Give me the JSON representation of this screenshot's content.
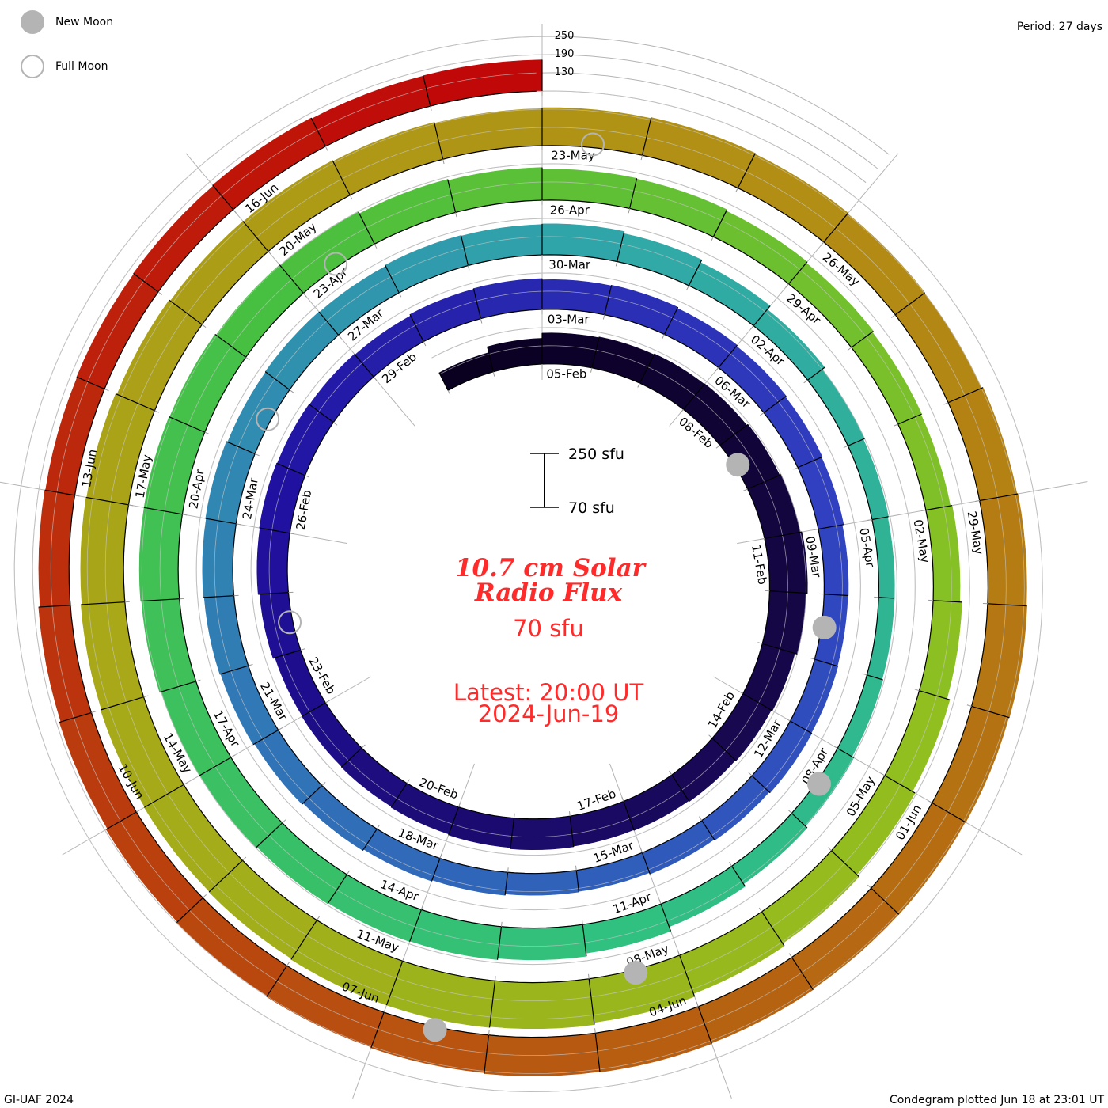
{
  "legend": {
    "new_moon": "New Moon",
    "full_moon": "Full Moon"
  },
  "period_label": "Period: 27 days",
  "footer_left": "GI-UAF 2024",
  "footer_right": "Condegram plotted Jun 18 at 23:01 UT",
  "center": {
    "title_line1": "10.7 cm Solar",
    "title_line2": "Radio Flux",
    "value": "70 sfu",
    "latest_line1": "Latest: 20:00 UT",
    "latest_line2": "2024-Jun-19"
  },
  "scale_bar": {
    "top": "250 sfu",
    "bottom": "70 sfu"
  },
  "chart_data": {
    "type": "condegram",
    "title": "10.7 cm Solar Radio Flux",
    "unit": "sfu",
    "period_days": 27,
    "start_date": "2024-02-03",
    "end_date": "2024-06-18",
    "baseline": 70,
    "grid_levels": [
      250,
      190,
      130
    ],
    "grid_level_labels": [
      "250",
      "190",
      "130"
    ],
    "values": [
      135,
      155,
      172,
      175,
      178,
      180,
      185,
      190,
      195,
      190,
      182,
      178,
      175,
      172,
      170,
      172,
      168,
      165,
      162,
      160,
      158,
      165,
      170,
      172,
      170,
      168,
      165,
      170,
      172,
      168,
      170,
      166,
      162,
      158,
      155,
      150,
      148,
      150,
      152,
      148,
      145,
      140,
      142,
      146,
      150,
      155,
      160,
      165,
      168,
      170,
      172,
      168,
      170,
      168,
      172,
      170,
      172,
      165,
      155,
      140,
      130,
      125,
      122,
      122,
      125,
      132,
      140,
      150,
      165,
      175,
      180,
      182,
      185,
      188,
      190,
      195,
      198,
      198,
      196,
      192,
      188,
      182,
      178,
      172,
      170,
      165,
      160,
      155,
      152,
      158,
      165,
      175,
      185,
      195,
      205,
      215,
      222,
      225,
      225,
      222,
      220,
      218,
      215,
      212,
      210,
      205,
      200,
      198,
      195,
      192,
      195,
      198,
      195,
      192,
      190,
      195,
      198,
      200,
      198,
      196,
      195,
      198,
      200,
      198,
      195,
      192,
      188,
      185,
      180,
      175,
      170,
      168,
      170,
      172,
      175,
      172,
      173
    ],
    "date_labels": [
      "05-Feb",
      "08-Feb",
      "11-Feb",
      "14-Feb",
      "17-Feb",
      "20-Feb",
      "23-Feb",
      "26-Feb",
      "29-Feb",
      "03-Mar",
      "06-Mar",
      "09-Mar",
      "12-Mar",
      "15-Mar",
      "18-Mar",
      "21-Mar",
      "24-Mar",
      "27-Mar",
      "30-Mar",
      "02-Apr",
      "05-Apr",
      "08-Apr",
      "11-Apr",
      "14-Apr",
      "17-Apr",
      "20-Apr",
      "23-Apr",
      "26-Apr",
      "29-Apr",
      "02-May",
      "05-May",
      "08-May",
      "11-May",
      "14-May",
      "17-May",
      "20-May",
      "23-May",
      "26-May",
      "29-May",
      "01-Jun",
      "04-Jun",
      "07-Jun",
      "10-Jun",
      "13-Jun",
      "16-Jun"
    ],
    "moons": [
      {
        "type": "new",
        "date": "2024-02-09"
      },
      {
        "type": "full",
        "date": "2024-02-24"
      },
      {
        "type": "new",
        "date": "2024-03-10"
      },
      {
        "type": "full",
        "date": "2024-03-25"
      },
      {
        "type": "new",
        "date": "2024-04-08"
      },
      {
        "type": "full",
        "date": "2024-04-23"
      },
      {
        "type": "new",
        "date": "2024-05-08"
      },
      {
        "type": "full",
        "date": "2024-05-23"
      },
      {
        "type": "new",
        "date": "2024-06-06"
      }
    ],
    "color_stops": [
      "#0a0020",
      "#180850",
      "#2010a0",
      "#3040c0",
      "#3070b8",
      "#30a8a8",
      "#30c080",
      "#48c040",
      "#90c020",
      "#a8a818",
      "#b38a14",
      "#b85010",
      "#c00808"
    ],
    "moon_color": "#b4b4b4"
  }
}
